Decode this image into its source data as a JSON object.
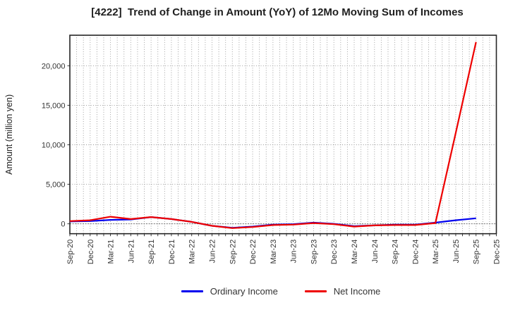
{
  "title": "[4222]  Trend of Change in Amount (YoY) of 12Mo Moving Sum of Incomes",
  "colors": {
    "ordinary": "#0000ee",
    "net": "#ee0000",
    "grid": "#8c8c8c",
    "zero_line": "#707070",
    "border": "#262626",
    "tick_text": "#333333",
    "axis_label_text": "#222222",
    "title_text": "#1f1f1f",
    "background": "#ffffff"
  },
  "legend": {
    "items": [
      {
        "label": "Ordinary Income",
        "color_key": "ordinary"
      },
      {
        "label": "Net Income",
        "color_key": "net"
      }
    ]
  },
  "chart_data": {
    "type": "line",
    "title": "[4222]  Trend of Change in Amount (YoY) of 12Mo Moving Sum of Incomes",
    "xlabel": "",
    "ylabel": "Amount (million yen)",
    "categories": [
      "Sep-20",
      "Dec-20",
      "Mar-21",
      "Jun-21",
      "Sep-21",
      "Dec-21",
      "Mar-22",
      "Jun-22",
      "Sep-22",
      "Dec-22",
      "Mar-23",
      "Jun-23",
      "Sep-23",
      "Dec-23",
      "Mar-24",
      "Jun-24",
      "Sep-24",
      "Dec-24",
      "Mar-25",
      "Jun-25",
      "Sep-25",
      "Dec-25"
    ],
    "series": [
      {
        "name": "Ordinary Income",
        "color_key": "ordinary",
        "values": [
          300,
          350,
          500,
          550,
          850,
          600,
          250,
          -250,
          -500,
          -350,
          -100,
          -50,
          150,
          0,
          -300,
          -200,
          -100,
          -100,
          150,
          450,
          700,
          null
        ]
      },
      {
        "name": "Net Income",
        "color_key": "net",
        "values": [
          350,
          450,
          900,
          600,
          850,
          600,
          250,
          -250,
          -550,
          -400,
          -150,
          -100,
          100,
          -50,
          -350,
          -200,
          -150,
          -150,
          100,
          11500,
          23000,
          null
        ]
      }
    ],
    "yticks": [
      0,
      5000,
      10000,
      15000,
      20000
    ],
    "ytick_labels": [
      "0",
      "5,000",
      "10,000",
      "15,000",
      "20,000"
    ],
    "ylim": [
      -1250,
      23860
    ],
    "grid": true,
    "minor_x_gridlines_per_quarter": 3,
    "legend_position": "bottom"
  }
}
